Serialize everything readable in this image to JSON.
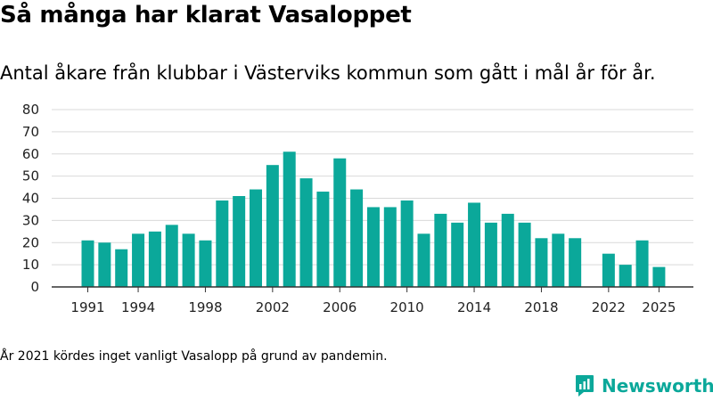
{
  "header": {
    "title": "Så många har klarat Vasaloppet",
    "subtitle": "Antal åkare från klubbar i Västerviks kommun som gått i mål år för år."
  },
  "footnote": "År 2021 kördes inget vanligt Vasalopp på grund av pandemin.",
  "brand": {
    "name": "Newsworthy",
    "color": "#0ba89a"
  },
  "colors": {
    "bar": "#0ba89a",
    "grid": "#d9d9d9",
    "axis": "#333333"
  },
  "chart_data": {
    "type": "bar",
    "title": "Så många har klarat Vasaloppet",
    "xlabel": "",
    "ylabel": "",
    "ylim": [
      0,
      80
    ],
    "yticks": [
      0,
      10,
      20,
      30,
      40,
      50,
      60,
      70,
      80
    ],
    "xticks": [
      1991,
      1994,
      1998,
      2002,
      2006,
      2010,
      2014,
      2018,
      2022,
      2025
    ],
    "grid": true,
    "categories": [
      1991,
      1992,
      1993,
      1994,
      1995,
      1996,
      1997,
      1998,
      1999,
      2000,
      2001,
      2002,
      2003,
      2004,
      2005,
      2006,
      2007,
      2008,
      2009,
      2010,
      2011,
      2012,
      2013,
      2014,
      2015,
      2016,
      2017,
      2018,
      2019,
      2020,
      2021,
      2022,
      2023,
      2024,
      2025
    ],
    "values": [
      21,
      20,
      17,
      24,
      25,
      28,
      24,
      21,
      39,
      41,
      44,
      55,
      61,
      49,
      43,
      58,
      44,
      36,
      36,
      39,
      24,
      33,
      29,
      38,
      29,
      33,
      29,
      22,
      24,
      22,
      null,
      15,
      10,
      21,
      9
    ]
  }
}
